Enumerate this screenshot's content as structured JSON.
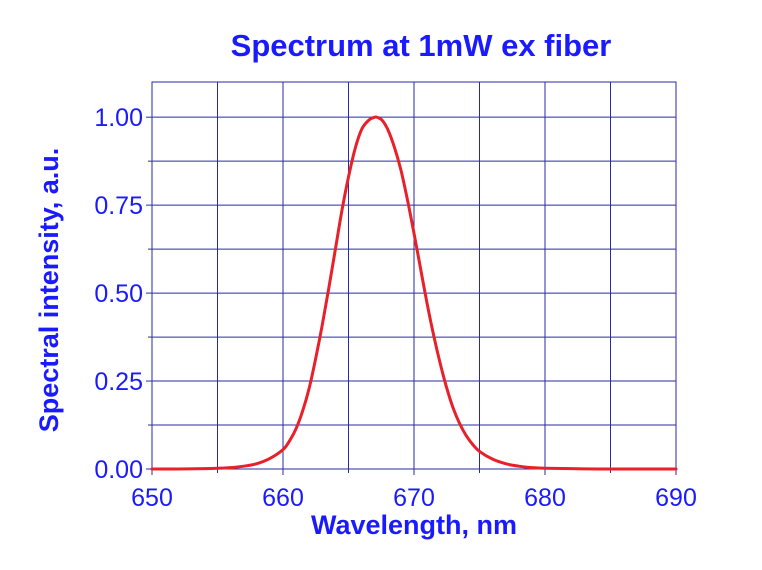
{
  "chart_data": {
    "type": "line",
    "title": "Spectrum at 1mW ex fiber",
    "xlabel": "Wavelength, nm",
    "ylabel": "Spectral intensity, a.u.",
    "xlim": [
      650,
      690
    ],
    "ylim": [
      0,
      1.1
    ],
    "x_ticks": [
      650,
      660,
      670,
      680,
      690
    ],
    "x_tick_labels": [
      "650",
      "660",
      "670",
      "680",
      "690"
    ],
    "x_minor_step": 5,
    "y_ticks": [
      0,
      0.25,
      0.5,
      0.75,
      1.0
    ],
    "y_tick_labels": [
      "0.00",
      "0.25",
      "0.50",
      "0.75",
      "1.00"
    ],
    "y_minor_step": 0.125,
    "grid": true,
    "legend": "none",
    "series": [
      {
        "color": "#e8202a",
        "x": [
          650,
          652,
          654,
          655,
          656,
          657,
          658,
          659,
          660,
          660.5,
          661,
          661.5,
          662,
          662.5,
          663,
          663.5,
          664,
          664.5,
          665,
          665.5,
          666,
          666.5,
          667,
          667.3,
          667.6,
          668,
          668.5,
          669,
          669.5,
          670,
          670.5,
          671,
          671.5,
          672,
          672.5,
          673,
          673.5,
          674,
          674.5,
          675,
          676,
          677,
          678,
          679,
          680,
          682,
          684,
          686,
          688,
          690
        ],
        "y": [
          0,
          0,
          0.001,
          0.002,
          0.004,
          0.008,
          0.015,
          0.03,
          0.055,
          0.08,
          0.115,
          0.165,
          0.23,
          0.315,
          0.41,
          0.515,
          0.625,
          0.735,
          0.83,
          0.91,
          0.965,
          0.99,
          1.0,
          0.998,
          0.99,
          0.965,
          0.915,
          0.85,
          0.765,
          0.67,
          0.57,
          0.47,
          0.38,
          0.3,
          0.23,
          0.172,
          0.128,
          0.094,
          0.069,
          0.05,
          0.028,
          0.015,
          0.008,
          0.004,
          0.002,
          0.001,
          0,
          0,
          0,
          0
        ]
      }
    ]
  }
}
